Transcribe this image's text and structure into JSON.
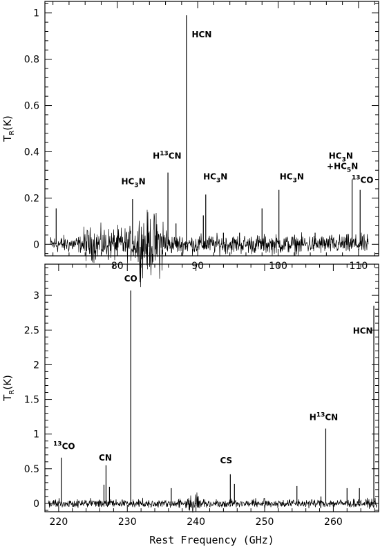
{
  "chart_data": [
    {
      "type": "line",
      "xlim": [
        71,
        112.5
      ],
      "ylim": [
        -0.05,
        1.05
      ],
      "xticks": [
        80,
        90,
        100,
        110
      ],
      "yticks": [
        0,
        0.2,
        0.4,
        0.6,
        0.8,
        1
      ],
      "ytick_labels": [
        "0",
        "0.2",
        "0.4",
        "0.6",
        "0.8",
        "1"
      ],
      "ylabel": {
        "main": "T",
        "sub": "R",
        "tail": "(K)"
      },
      "xlabel": "",
      "grid": false,
      "lines": [
        {
          "x": 72.4,
          "y": 0.155
        },
        {
          "x": 81.9,
          "y": 0.195
        },
        {
          "x": 86.3,
          "y": 0.31
        },
        {
          "x": 87.3,
          "y": 0.09
        },
        {
          "x": 88.6,
          "y": 0.99
        },
        {
          "x": 90.7,
          "y": 0.125
        },
        {
          "x": 91.0,
          "y": 0.215
        },
        {
          "x": 93.2,
          "y": 0.05
        },
        {
          "x": 95.2,
          "y": 0.05
        },
        {
          "x": 98.0,
          "y": 0.155
        },
        {
          "x": 100.1,
          "y": 0.235
        },
        {
          "x": 104.6,
          "y": 0.05
        },
        {
          "x": 109.2,
          "y": 0.28
        },
        {
          "x": 110.2,
          "y": 0.235
        }
      ],
      "noisy_regions": [
        {
          "from": 71.7,
          "to": 75.6,
          "amp": 0.018
        },
        {
          "from": 75.6,
          "to": 82.5,
          "amp": 0.035
        },
        {
          "from": 82.5,
          "to": 86.2,
          "amp": 0.065
        },
        {
          "from": 86.2,
          "to": 111.2,
          "amp": 0.02
        }
      ],
      "annotations": [
        {
          "main": "HC",
          "sub": "3",
          "tail": "N",
          "x": 82.0,
          "y": 0.26
        },
        {
          "pre": "H",
          "sup": "13",
          "tail": "CN",
          "x": 86.2,
          "y": 0.37
        },
        {
          "main": "HCN",
          "x": 90.5,
          "y": 0.895
        },
        {
          "main": "HC",
          "sub": "3",
          "tail": "N",
          "x": 92.2,
          "y": 0.28
        },
        {
          "main": "HC",
          "sub": "3",
          "tail": "N",
          "x": 101.7,
          "y": 0.28
        },
        {
          "main": "HC",
          "sub": "3",
          "tail": "N",
          "x": 107.8,
          "y": 0.37
        },
        {
          "main": "+HC",
          "sub": "5",
          "tail": "N",
          "x": 108.0,
          "y": 0.325
        },
        {
          "pre": "",
          "sup": "13",
          "tail": "CO",
          "x": 110.5,
          "y": 0.265
        }
      ]
    },
    {
      "type": "line",
      "xlim": [
        218.0,
        266.6
      ],
      "ylim": [
        -0.12,
        3.45
      ],
      "xticks": [
        220,
        230,
        240,
        250,
        260
      ],
      "yticks": [
        0,
        0.5,
        1,
        1.5,
        2,
        2.5,
        3
      ],
      "ytick_labels": [
        "0",
        "0.5",
        "1",
        "1.5",
        "2",
        "2.5",
        "3"
      ],
      "ylabel": {
        "main": "T",
        "sub": "R",
        "tail": "(K)"
      },
      "xlabel": "Rest Frequency (GHz)",
      "grid": false,
      "lines": [
        {
          "x": 220.4,
          "y": 0.66
        },
        {
          "x": 226.6,
          "y": 0.27
        },
        {
          "x": 226.9,
          "y": 0.55
        },
        {
          "x": 227.4,
          "y": 0.24
        },
        {
          "x": 230.5,
          "y": 3.07
        },
        {
          "x": 236.4,
          "y": 0.22
        },
        {
          "x": 245.0,
          "y": 0.42
        },
        {
          "x": 245.6,
          "y": 0.28
        },
        {
          "x": 254.7,
          "y": 0.25
        },
        {
          "x": 258.2,
          "y": 0.1
        },
        {
          "x": 258.9,
          "y": 1.08
        },
        {
          "x": 262.0,
          "y": 0.22
        },
        {
          "x": 263.8,
          "y": 0.22
        },
        {
          "x": 265.9,
          "y": 2.85
        }
      ],
      "noisy_regions": [
        {
          "from": 218.5,
          "to": 238.5,
          "amp": 0.03
        },
        {
          "from": 238.5,
          "to": 241.2,
          "amp": 0.06
        },
        {
          "from": 241.2,
          "to": 266.3,
          "amp": 0.03
        }
      ],
      "annotations": [
        {
          "pre": "",
          "sup": "13",
          "tail": "CO",
          "x": 220.8,
          "y": 0.78
        },
        {
          "main": "CN",
          "x": 226.8,
          "y": 0.62
        },
        {
          "main": "CO",
          "x": 230.5,
          "y": 3.2
        },
        {
          "main": "CS",
          "x": 244.4,
          "y": 0.58
        },
        {
          "pre": "H",
          "sup": "13",
          "tail": "CN",
          "x": 258.6,
          "y": 1.2
        },
        {
          "main": "HCN",
          "x": 264.3,
          "y": 2.45
        }
      ]
    }
  ]
}
